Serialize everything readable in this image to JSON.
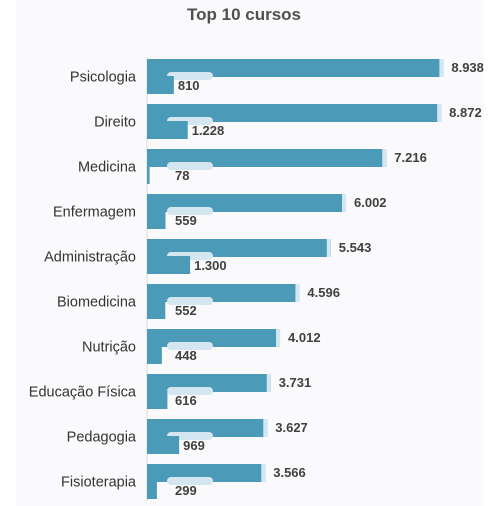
{
  "chart_data": {
    "type": "bar",
    "orientation": "horizontal",
    "title": "Top 10 cursos",
    "categories": [
      "Psicologia",
      "Direito",
      "Medicina",
      "Enfermagem",
      "Administração",
      "Biomedicina",
      "Nutrição",
      "Educação Física",
      "Pedagogia",
      "Fisioterapia"
    ],
    "series": [
      {
        "values": [
          8938,
          8872,
          7216,
          6002,
          5543,
          4596,
          4012,
          3731,
          3627,
          3566
        ],
        "labels": [
          "8.938",
          "8.872",
          "7.216",
          "6.002",
          "5.543",
          "4.596",
          "4.012",
          "3.731",
          "3.627",
          "3.566"
        ]
      },
      {
        "values": [
          810,
          1228,
          78,
          559,
          1300,
          552,
          448,
          616,
          969,
          299
        ],
        "labels": [
          "810",
          "1.228",
          "78",
          "559",
          "1.300",
          "552",
          "448",
          "616",
          "969",
          "299"
        ]
      }
    ],
    "xlim": [
      0,
      9500
    ],
    "grid": false,
    "legend": "none",
    "colors": {
      "bar": "#4a9ab8",
      "label_pill": "#d4e6ef"
    }
  }
}
